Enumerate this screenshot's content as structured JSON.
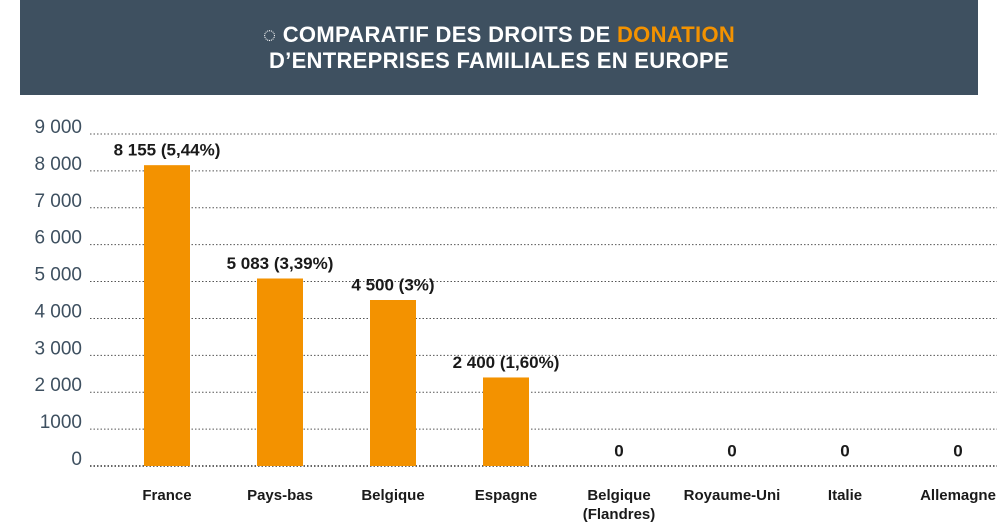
{
  "chart_data": {
    "type": "bar",
    "title": {
      "prefix": "◌ COMPARATIF DES DROITS DE ",
      "highlight": "DONATION",
      "line2": "D’ENTREPRISES FAMILIALES EN EUROPE"
    },
    "categories": [
      "France",
      "Pays-bas",
      "Belgique",
      "Espagne",
      "Belgique (Flandres)",
      "Royaume-Uni",
      "Italie",
      "Allemagne"
    ],
    "values": [
      8155,
      5083,
      4500,
      2400,
      0,
      0,
      0,
      0
    ],
    "value_labels": [
      "8 155 (5,44%)",
      "5 083 (3,39%)",
      "4 500 (3%)",
      "2 400 (1,60%)",
      "0",
      "0",
      "0",
      "0"
    ],
    "color": "#f39200",
    "ylim": [
      0,
      9000
    ],
    "yticks": [
      {
        "value": 0,
        "label": "0"
      },
      {
        "value": 1000,
        "label": "1000"
      },
      {
        "value": 2000,
        "label": "2 000"
      },
      {
        "value": 3000,
        "label": "3 000"
      },
      {
        "value": 4000,
        "label": "4 000"
      },
      {
        "value": 5000,
        "label": "5 000"
      },
      {
        "value": 6000,
        "label": "6 000"
      },
      {
        "value": 7000,
        "label": "7 000"
      },
      {
        "value": 8000,
        "label": "8 000"
      },
      {
        "value": 9000,
        "label": "9 000"
      }
    ],
    "grid": true
  }
}
